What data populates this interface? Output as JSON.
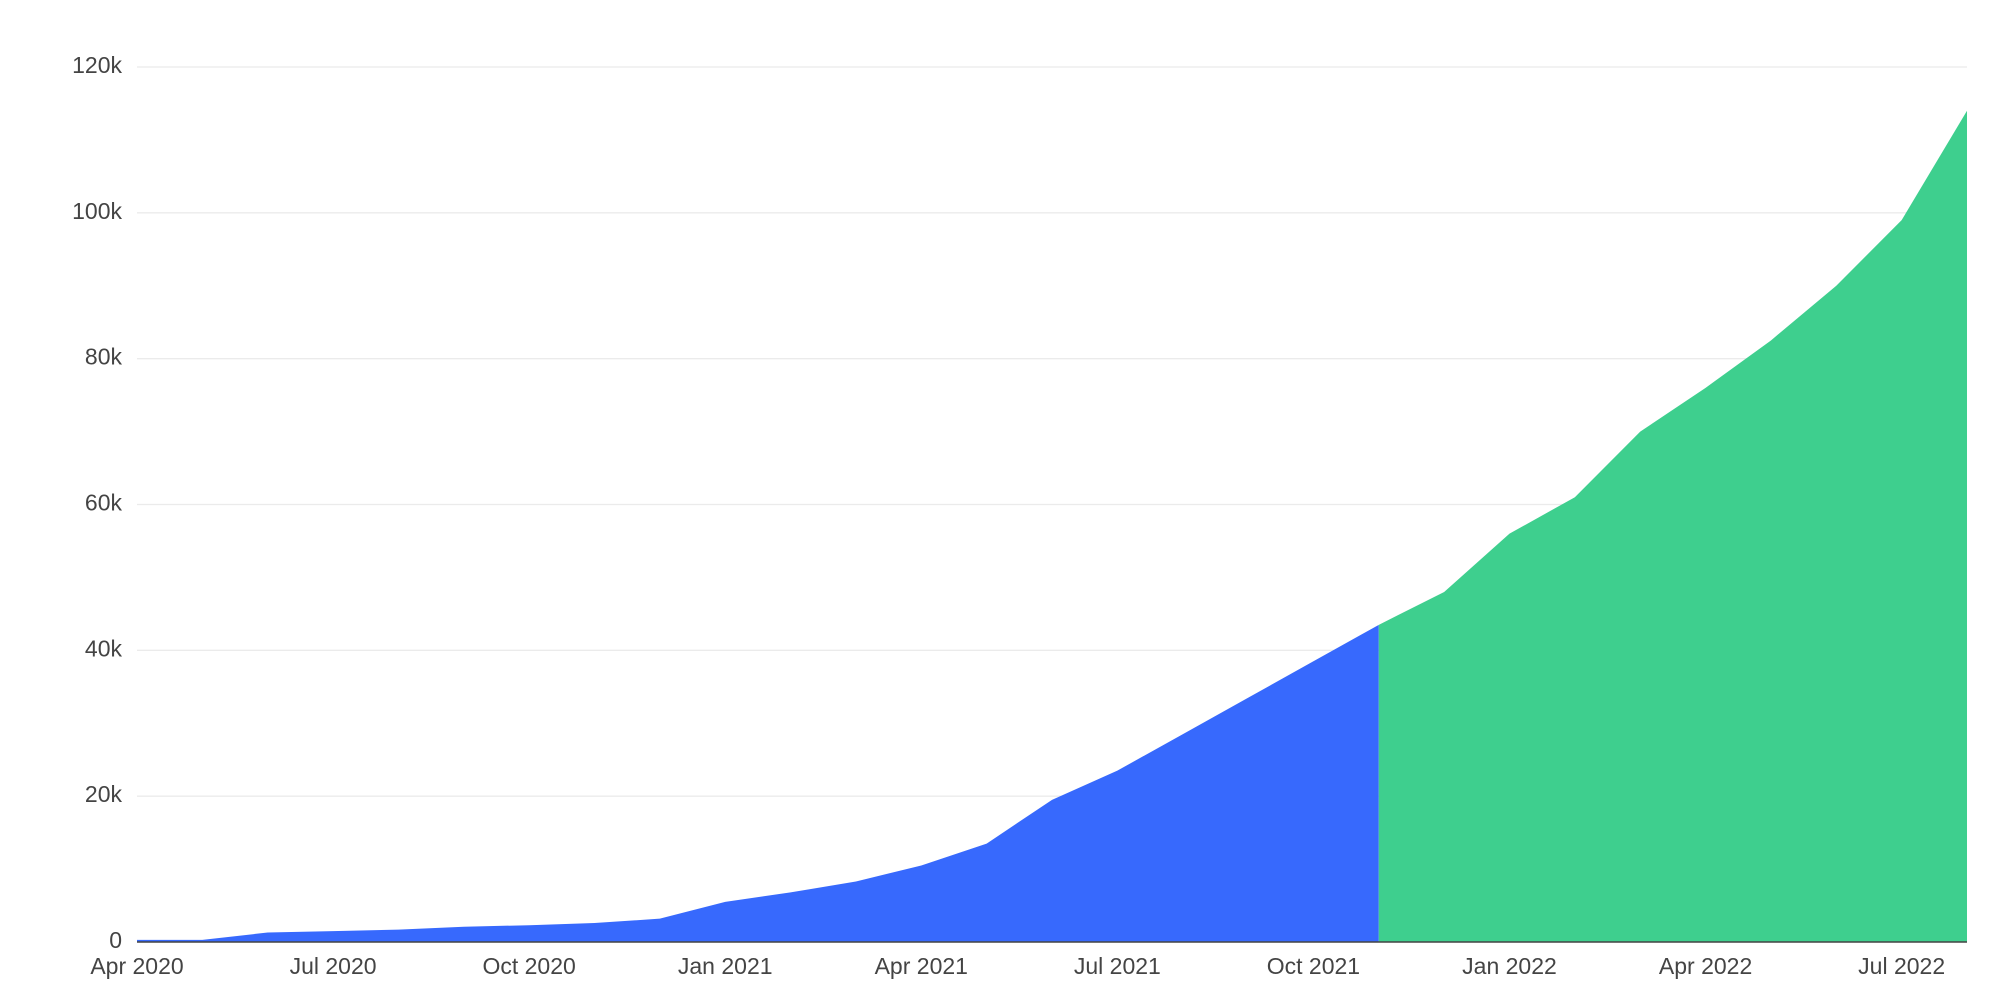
{
  "chart_data": {
    "type": "area",
    "series": [
      {
        "color": "#3769fd",
        "x": [
          "2020-04",
          "2020-05",
          "2020-06",
          "2020-07",
          "2020-08",
          "2020-09",
          "2020-10",
          "2020-11",
          "2020-12",
          "2021-01",
          "2021-02",
          "2021-03",
          "2021-04",
          "2021-05",
          "2021-06",
          "2021-07",
          "2021-08",
          "2021-09",
          "2021-10",
          "2021-11"
        ],
        "values": [
          300,
          300,
          1300,
          1500,
          1700,
          2100,
          2300,
          2600,
          3200,
          5500,
          6800,
          8300,
          10500,
          13500,
          19500,
          23500,
          28500,
          33500,
          38500,
          43500
        ]
      },
      {
        "color": "#3ecf8e",
        "x": [
          "2021-11",
          "2021-12",
          "2022-01",
          "2022-02",
          "2022-03",
          "2022-04",
          "2022-05",
          "2022-06",
          "2022-07",
          "2022-08"
        ],
        "values": [
          43500,
          48000,
          56000,
          61000,
          70000,
          76000,
          82500,
          90000,
          99000,
          114000
        ]
      }
    ],
    "xlim": [
      "2020-04",
      "2022-08"
    ],
    "xticks": [
      {
        "value": "2020-04",
        "label": "Apr 2020"
      },
      {
        "value": "2020-07",
        "label": "Jul 2020"
      },
      {
        "value": "2020-10",
        "label": "Oct 2020"
      },
      {
        "value": "2021-01",
        "label": "Jan 2021"
      },
      {
        "value": "2021-04",
        "label": "Apr 2021"
      },
      {
        "value": "2021-07",
        "label": "Jul 2021"
      },
      {
        "value": "2021-10",
        "label": "Oct 2021"
      },
      {
        "value": "2022-01",
        "label": "Jan 2022"
      },
      {
        "value": "2022-04",
        "label": "Apr 2022"
      },
      {
        "value": "2022-07",
        "label": "Jul 2022"
      }
    ],
    "ylim": [
      0,
      120000
    ],
    "yticks": [
      0,
      {
        "value": 20000,
        "label": "20k"
      },
      {
        "value": 40000,
        "label": "40k"
      },
      {
        "value": 60000,
        "label": "60k"
      },
      {
        "value": 80000,
        "label": "80k"
      },
      {
        "value": 100000,
        "label": "100k"
      },
      {
        "value": 120000,
        "label": "120k"
      }
    ],
    "grid": true
  }
}
